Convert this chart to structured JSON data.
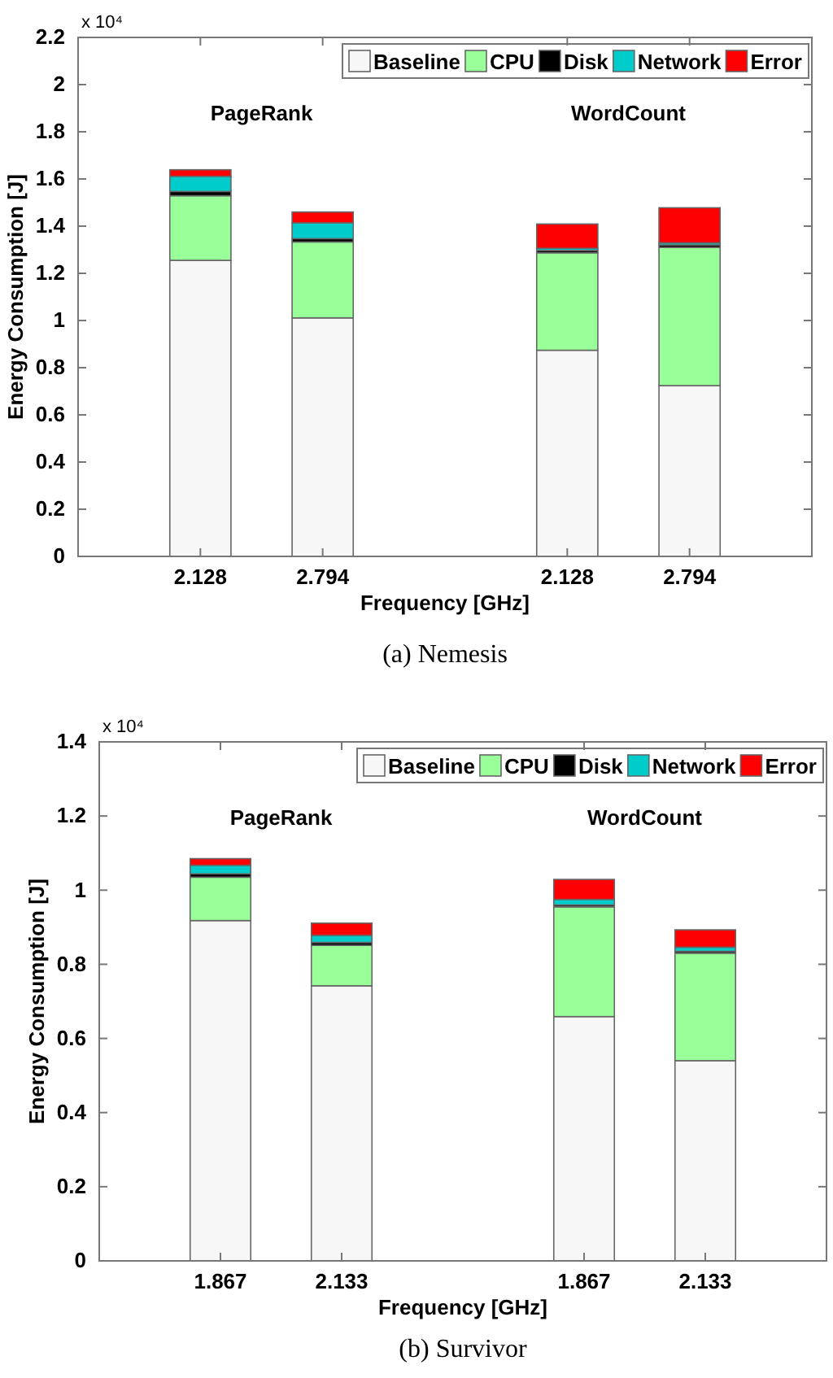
{
  "chart_data": [
    {
      "type": "bar",
      "title": "(a)  Nemesis",
      "xlabel": "Frequency [GHz]",
      "ylabel": "Energy Consumption [J]",
      "categories": [
        "2.128",
        "2.794",
        null,
        "2.128",
        "2.794"
      ],
      "stacked": true,
      "series": [
        {
          "name": "Baseline",
          "color": "#f7f7f7",
          "values": [
            1.255,
            1.011,
            null,
            0.874,
            0.724
          ]
        },
        {
          "name": "CPU",
          "color": "#99ff99",
          "values": [
            0.274,
            0.322,
            null,
            0.413,
            0.586
          ]
        },
        {
          "name": "Disk",
          "color": "#000000",
          "values": [
            0.018,
            0.014,
            null,
            0.01,
            0.01
          ]
        },
        {
          "name": "Network",
          "color": "#00cccc",
          "values": [
            0.064,
            0.067,
            null,
            0.009,
            0.009
          ]
        },
        {
          "name": "Error",
          "color": "#ff0000",
          "values": [
            0.028,
            0.046,
            null,
            0.103,
            0.149
          ]
        }
      ],
      "ylim": [
        0,
        2.2
      ],
      "yticks": [
        0,
        0.2,
        0.4,
        0.6,
        0.8,
        1,
        1.2,
        1.4,
        1.6,
        1.8,
        2,
        2.2
      ],
      "annotations": [
        "x 10⁴",
        "PageRank",
        "WordCount"
      ],
      "legend": "top right",
      "grid": false
    },
    {
      "type": "bar",
      "title": "(b)  Survivor",
      "xlabel": "Frequency [GHz]",
      "ylabel": "Energy Consumption [J]",
      "categories": [
        "1.867",
        "2.133",
        null,
        "1.867",
        "2.133"
      ],
      "stacked": true,
      "series": [
        {
          "name": "Baseline",
          "color": "#f7f7f7",
          "values": [
            0.918,
            0.742,
            null,
            0.659,
            0.54
          ]
        },
        {
          "name": "CPU",
          "color": "#99ff99",
          "values": [
            0.117,
            0.109,
            null,
            0.296,
            0.29
          ]
        },
        {
          "name": "Disk",
          "color": "#000000",
          "values": [
            0.009,
            0.008,
            null,
            0.005,
            0.005
          ]
        },
        {
          "name": "Network",
          "color": "#00cccc",
          "values": [
            0.023,
            0.019,
            null,
            0.015,
            0.011
          ]
        },
        {
          "name": "Error",
          "color": "#ff0000",
          "values": [
            0.018,
            0.033,
            null,
            0.054,
            0.047
          ]
        }
      ],
      "ylim": [
        0,
        1.4
      ],
      "yticks": [
        0,
        0.2,
        0.4,
        0.6,
        0.8,
        1,
        1.2,
        1.4
      ],
      "annotations": [
        "x 10⁴",
        "PageRank",
        "WordCount"
      ],
      "legend": "top right",
      "grid": false
    }
  ]
}
